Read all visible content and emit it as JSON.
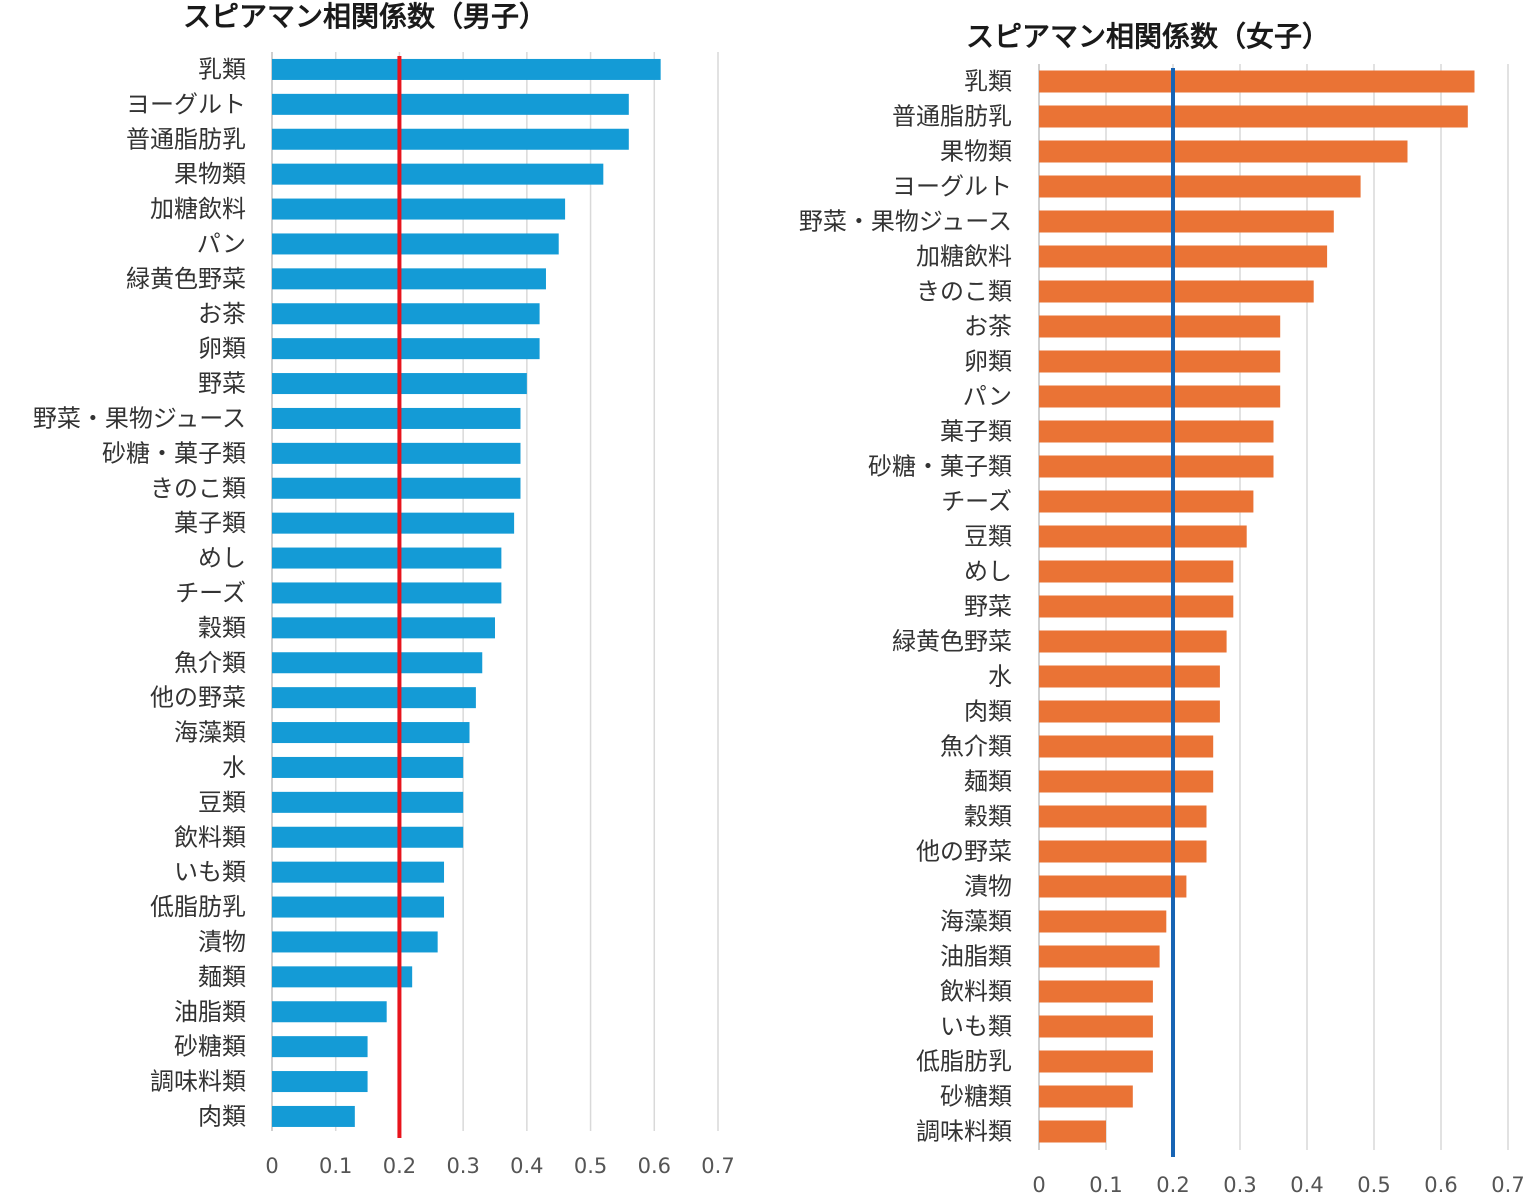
{
  "chart_data": [
    {
      "type": "bar",
      "orientation": "horizontal",
      "title": "スピアマン相関係数（男子）",
      "bar_color": "#149bd6",
      "reference_line": {
        "value": 0.2,
        "color": "#e8141c"
      },
      "xlim": [
        0,
        0.7
      ],
      "xticks": [
        "0",
        "0.1",
        "0.2",
        "0.3",
        "0.4",
        "0.5",
        "0.6",
        "0.7"
      ],
      "grid": true,
      "categories": [
        "乳類",
        "ヨーグルト",
        "普通脂肪乳",
        "果物類",
        "加糖飲料",
        "パン",
        "緑黄色野菜",
        "お茶",
        "卵類",
        "野菜",
        "野菜・果物ジュース",
        "砂糖・菓子類",
        "きのこ類",
        "菓子類",
        "めし",
        "チーズ",
        "穀類",
        "魚介類",
        "他の野菜",
        "海藻類",
        "水",
        "豆類",
        "飲料類",
        "いも類",
        "低脂肪乳",
        "漬物",
        "麺類",
        "油脂類",
        "砂糖類",
        "調味料類",
        "肉類"
      ],
      "values": [
        0.61,
        0.56,
        0.56,
        0.52,
        0.46,
        0.45,
        0.43,
        0.42,
        0.42,
        0.4,
        0.39,
        0.39,
        0.39,
        0.38,
        0.36,
        0.36,
        0.35,
        0.33,
        0.32,
        0.31,
        0.3,
        0.3,
        0.3,
        0.27,
        0.27,
        0.26,
        0.22,
        0.18,
        0.15,
        0.15,
        0.13
      ]
    },
    {
      "type": "bar",
      "orientation": "horizontal",
      "title": "スピアマン相関係数（女子）",
      "bar_color": "#ea7335",
      "reference_line": {
        "value": 0.2,
        "color": "#1764b4"
      },
      "xlim": [
        0,
        0.7
      ],
      "xticks": [
        "0",
        "0.1",
        "0.2",
        "0.3",
        "0.4",
        "0.5",
        "0.6",
        "0.7"
      ],
      "grid": true,
      "categories": [
        "乳類",
        "普通脂肪乳",
        "果物類",
        "ヨーグルト",
        "野菜・果物ジュース",
        "加糖飲料",
        "きのこ類",
        "お茶",
        "卵類",
        "パン",
        "菓子類",
        "砂糖・菓子類",
        "チーズ",
        "豆類",
        "めし",
        "野菜",
        "緑黄色野菜",
        "水",
        "肉類",
        "魚介類",
        "麺類",
        "穀類",
        "他の野菜",
        "漬物",
        "海藻類",
        "油脂類",
        "飲料類",
        "いも類",
        "低脂肪乳",
        "砂糖類",
        "調味料類"
      ],
      "values": [
        0.65,
        0.64,
        0.55,
        0.48,
        0.44,
        0.43,
        0.41,
        0.36,
        0.36,
        0.36,
        0.35,
        0.35,
        0.32,
        0.31,
        0.29,
        0.29,
        0.28,
        0.27,
        0.27,
        0.26,
        0.26,
        0.25,
        0.25,
        0.22,
        0.19,
        0.18,
        0.17,
        0.17,
        0.17,
        0.14,
        0.1
      ]
    }
  ]
}
